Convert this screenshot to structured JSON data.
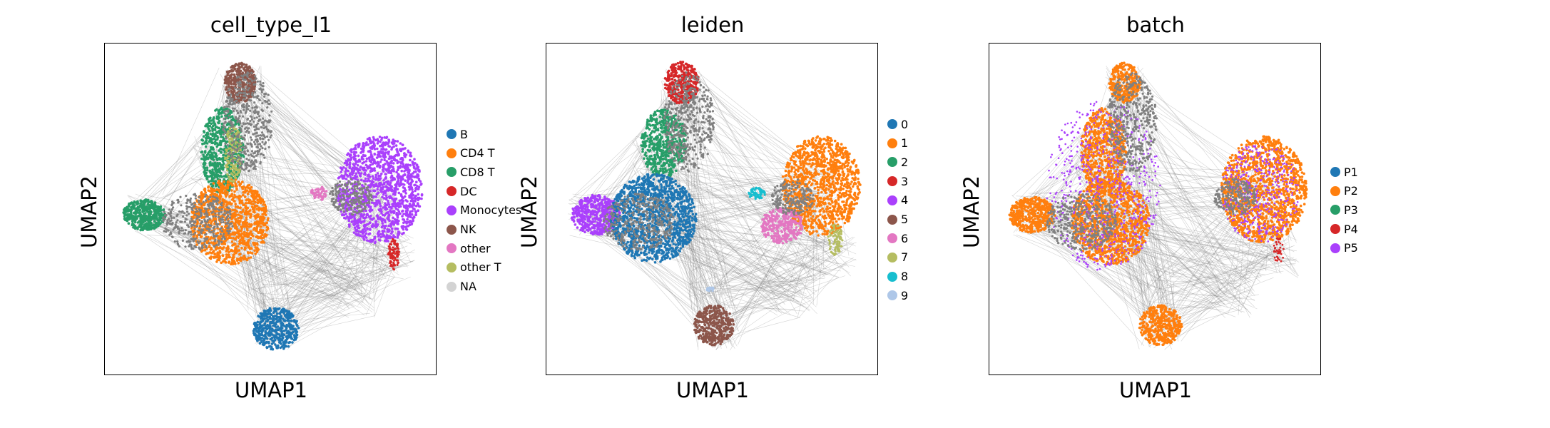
{
  "chart_data": [
    {
      "type": "scatter",
      "title": "cell_type_l1",
      "xlabel": "UMAP1",
      "ylabel": "UMAP2",
      "grid": false,
      "legend": "right",
      "series": [
        {
          "name": "B",
          "color": "#1f77b4"
        },
        {
          "name": "CD4 T",
          "color": "#ff7f0e"
        },
        {
          "name": "CD8 T",
          "color": "#279e68"
        },
        {
          "name": "DC",
          "color": "#d62728"
        },
        {
          "name": "Monocytes",
          "color": "#aa40fc"
        },
        {
          "name": "NK",
          "color": "#8c564b"
        },
        {
          "name": "other",
          "color": "#e377c2"
        },
        {
          "name": "other T",
          "color": "#b5bd61"
        },
        {
          "name": "NA",
          "color": "#d3d3d3"
        }
      ]
    },
    {
      "type": "scatter",
      "title": "leiden",
      "xlabel": "UMAP1",
      "ylabel": "UMAP2",
      "grid": false,
      "legend": "right",
      "series": [
        {
          "name": "0",
          "color": "#1f77b4"
        },
        {
          "name": "1",
          "color": "#ff7f0e"
        },
        {
          "name": "2",
          "color": "#279e68"
        },
        {
          "name": "3",
          "color": "#d62728"
        },
        {
          "name": "4",
          "color": "#aa40fc"
        },
        {
          "name": "5",
          "color": "#8c564b"
        },
        {
          "name": "6",
          "color": "#e377c2"
        },
        {
          "name": "7",
          "color": "#b5bd61"
        },
        {
          "name": "8",
          "color": "#17becf"
        },
        {
          "name": "9",
          "color": "#aec7e8"
        }
      ]
    },
    {
      "type": "scatter",
      "title": "batch",
      "xlabel": "UMAP1",
      "ylabel": "UMAP2",
      "grid": false,
      "legend": "right",
      "series": [
        {
          "name": "P1",
          "color": "#1f77b4"
        },
        {
          "name": "P2",
          "color": "#ff7f0e"
        },
        {
          "name": "P3",
          "color": "#279e68"
        },
        {
          "name": "P4",
          "color": "#d62728"
        },
        {
          "name": "P5",
          "color": "#aa40fc"
        }
      ]
    }
  ],
  "colors": {
    "edge": "#808080",
    "frame": "#000000"
  }
}
